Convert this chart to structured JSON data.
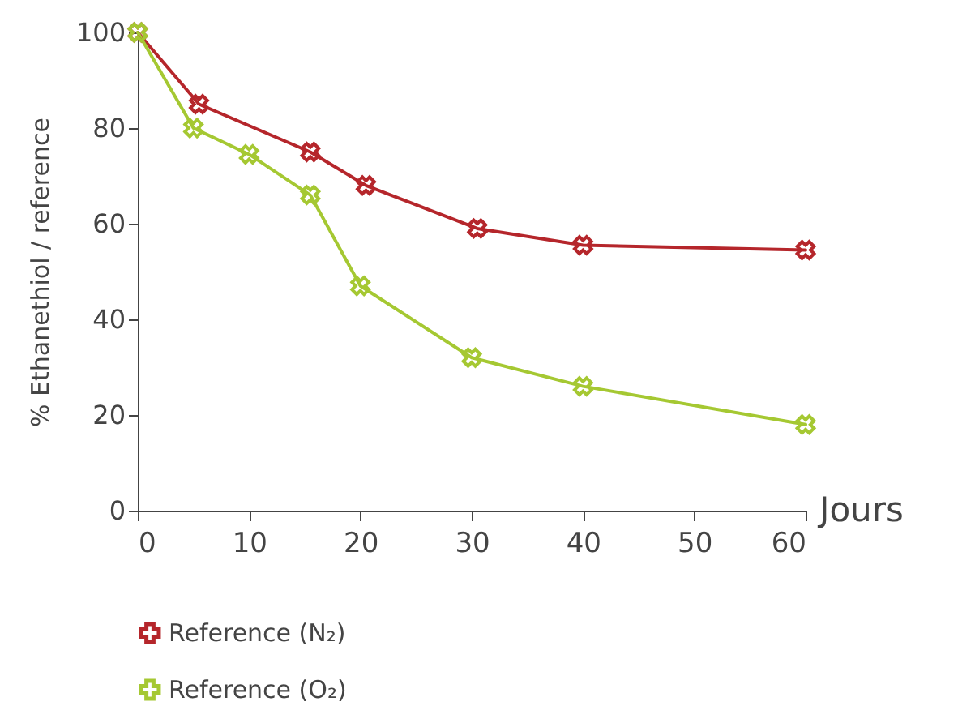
{
  "chart_data": {
    "type": "line",
    "xlabel": "Jours",
    "ylabel": "% Ethanethiol / reference",
    "xlim": [
      0,
      60
    ],
    "xticks": [
      0,
      10,
      20,
      30,
      40,
      50,
      60
    ],
    "ylim": [
      0,
      100
    ],
    "yticks": [
      0,
      20,
      40,
      60,
      80,
      100
    ],
    "grid": false,
    "legend": "bottom",
    "marker": "cross",
    "series": [
      {
        "name": "Reference (N₂)",
        "color": "#b5262b",
        "x": [
          0,
          5.5,
          15.5,
          20.5,
          30.5,
          40,
          60
        ],
        "values": [
          100,
          85,
          75,
          68,
          59,
          55.5,
          54.5
        ]
      },
      {
        "name": "Reference (O₂)",
        "color": "#a5c832",
        "x": [
          0,
          5,
          10,
          15.5,
          20,
          30,
          40,
          60
        ],
        "values": [
          100,
          80,
          74.5,
          66,
          47,
          32,
          26,
          18
        ]
      }
    ]
  }
}
